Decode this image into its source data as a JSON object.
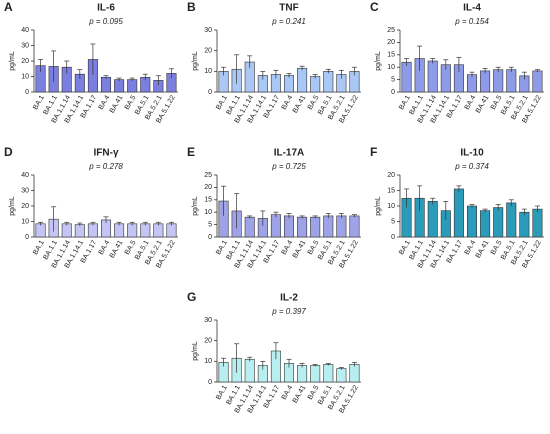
{
  "chart_data": [
    {
      "type": "bar",
      "panel": "A",
      "title": "IL-6",
      "annotation": "p = 0.095",
      "ylabel": "pg/mL",
      "color": "#7b7fe0",
      "categories": [
        "BA.1",
        "BA.1.1",
        "BA.1.1.14",
        "BA.1.14.1",
        "BA.1.17",
        "BA.4",
        "BA.41",
        "BA.5",
        "BA.5.1",
        "BA.5.2.1",
        "BA.5.1.22"
      ],
      "values": [
        17,
        16.5,
        16,
        11.5,
        21,
        9.5,
        8,
        8,
        9.5,
        7.5,
        12
      ],
      "errors": [
        4,
        10,
        4,
        3,
        10,
        1,
        1,
        1,
        2,
        3,
        3
      ],
      "ylim": [
        0,
        40
      ],
      "yticks": [
        0,
        10,
        20,
        30,
        40
      ]
    },
    {
      "type": "bar",
      "panel": "B",
      "title": "TNF",
      "annotation": "p = 0.241",
      "ylabel": "pg/mL",
      "color": "#a9c8f5",
      "categories": [
        "BA.1",
        "BA.1.1",
        "BA.1.1.14",
        "BA.1.14.1",
        "BA.1.17",
        "BA.4",
        "BA.41",
        "BA.5",
        "BA.5.1",
        "BA.5.2.1",
        "BA.5.1.22"
      ],
      "values": [
        10,
        11,
        14.5,
        8,
        8.5,
        8,
        11.5,
        7.5,
        10,
        8.5,
        10
      ],
      "errors": [
        2,
        7,
        3,
        2,
        2,
        1,
        1,
        1,
        1,
        2,
        2
      ],
      "ylim": [
        0,
        30
      ],
      "yticks": [
        0,
        10,
        20,
        30
      ]
    },
    {
      "type": "bar",
      "panel": "C",
      "title": "IL-4",
      "annotation": "p = 0.154",
      "ylabel": "pg/mL",
      "color": "#8e9be8",
      "categories": [
        "BA.1",
        "BA.1.1",
        "BA.1.1.14",
        "BA.1.14.1",
        "BA.1.17",
        "BA.4",
        "BA.41",
        "BA.5",
        "BA.5.1",
        "BA.5.2.1",
        "BA.5.1.22"
      ],
      "values": [
        12,
        13.5,
        12.5,
        11,
        11,
        7,
        8.5,
        9,
        9,
        6.5,
        8.5
      ],
      "errors": [
        1.5,
        5,
        1,
        2,
        3,
        1,
        1,
        1,
        1,
        1.5,
        0.5
      ],
      "ylim": [
        0,
        25
      ],
      "yticks": [
        0,
        5,
        10,
        15,
        20,
        25
      ]
    },
    {
      "type": "bar",
      "panel": "D",
      "title": "IFN-γ",
      "annotation": "p = 0.278",
      "ylabel": "pg/mL",
      "color": "#c4c4f5",
      "categories": [
        "BA.1",
        "BA.1.1",
        "BA.1.1.14",
        "BA.1.14.1",
        "BA.1.17",
        "BA.4",
        "BA.41",
        "BA.5",
        "BA.5.1",
        "BA.5.2.1",
        "BA.5.1.22"
      ],
      "values": [
        8.5,
        11.5,
        8.5,
        8,
        8.5,
        11,
        8.5,
        8.5,
        8.5,
        8.5,
        8.5
      ],
      "errors": [
        1,
        8,
        1,
        1,
        1,
        2,
        1,
        1,
        1,
        1,
        1
      ],
      "ylim": [
        0,
        40
      ],
      "yticks": [
        0,
        10,
        20,
        30,
        40
      ]
    },
    {
      "type": "bar",
      "panel": "E",
      "title": "IL-17A",
      "annotation": "p = 0.725",
      "ylabel": "pg/mL",
      "color": "#9ea3e8",
      "categories": [
        "BA.1",
        "BA.1.1",
        "BA.1.1.14",
        "BA.1.14.1",
        "BA.1.17",
        "BA.4",
        "BA.41",
        "BA.5",
        "BA.5.1",
        "BA.5.2.1",
        "BA.5.1.22"
      ],
      "values": [
        14.5,
        10.5,
        8,
        7.5,
        9,
        8.5,
        8,
        8,
        8.5,
        8.5,
        8.5
      ],
      "errors": [
        6,
        7,
        0.5,
        3,
        1,
        1,
        0.5,
        0.5,
        1,
        1,
        0.5
      ],
      "ylim": [
        0,
        25
      ],
      "yticks": [
        0,
        5,
        10,
        15,
        20,
        25
      ]
    },
    {
      "type": "bar",
      "panel": "F",
      "title": "IL-10",
      "annotation": "p = 0.374",
      "ylabel": "pg/mL",
      "color": "#2a9bb8",
      "categories": [
        "BA.1",
        "BA.1.1",
        "BA.1.1.14",
        "BA.1.14.1",
        "BA.1.17",
        "BA.4",
        "BA.41",
        "BA.5",
        "BA.5.1",
        "BA.5.2.1",
        "BA.5.1.22"
      ],
      "values": [
        12.5,
        12.5,
        11.5,
        8.5,
        15.5,
        10,
        8.5,
        9.5,
        11,
        8,
        9
      ],
      "errors": [
        3,
        4,
        1,
        3,
        1,
        0.5,
        0.5,
        1,
        1,
        1,
        1
      ],
      "ylim": [
        0,
        20
      ],
      "yticks": [
        0,
        5,
        10,
        15,
        20
      ]
    },
    {
      "type": "bar",
      "panel": "G",
      "title": "IL-2",
      "annotation": "p = 0.397",
      "ylabel": "pg/mL",
      "color": "#b8eef0",
      "categories": [
        "BA.1",
        "BA.1.1",
        "BA.1.1.14",
        "BA.1.14.1",
        "BA.1.17",
        "BA.4",
        "BA.41",
        "BA.5",
        "BA.5.1",
        "BA.5.2.1",
        "BA.5.1.22"
      ],
      "values": [
        9.5,
        11.5,
        11,
        8,
        15,
        9,
        8,
        8,
        8.5,
        6.5,
        8.5
      ],
      "errors": [
        2,
        7,
        1,
        2,
        4,
        2,
        1,
        0.5,
        0.5,
        0.5,
        1
      ],
      "ylim": [
        0,
        30
      ],
      "yticks": [
        0,
        10,
        20,
        30
      ]
    }
  ]
}
